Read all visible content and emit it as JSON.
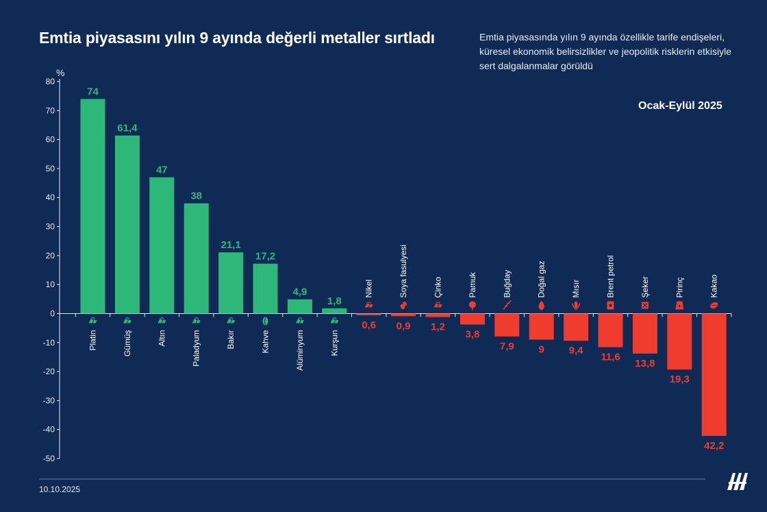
{
  "header": {
    "title": "Emtia piyasasını yılın 9 ayında değerli metaller sırtladı",
    "subtitle": "Emtia piyasasında yılın 9 ayında özellikle tarife endişeleri, küresel ekonomik belirsizlikler ve jeopolitik risklerin etkisiyle sert dalgalanmalar görüldü",
    "period": "Ocak-Eylül 2025"
  },
  "footer": {
    "date": "10.10.2025",
    "logo_text": "AA"
  },
  "colors": {
    "background": "#0f2a55",
    "positive": "#2db87a",
    "negative": "#f03c2e",
    "axis": "#e8edf5"
  },
  "chart_data": {
    "type": "bar",
    "ylabel": "%",
    "ylim": [
      -50,
      80
    ],
    "yticks": [
      80,
      70,
      60,
      50,
      40,
      30,
      20,
      10,
      0,
      -10,
      -20,
      -30,
      -40,
      -50
    ],
    "grid": false,
    "categories": [
      "Platin",
      "Gümüş",
      "Altın",
      "Paladyum",
      "Bakır",
      "Kahve",
      "Alüminyum",
      "Kurşun",
      "Nikel",
      "Soya fasulyesi",
      "Çinko",
      "Pamuk",
      "Buğday",
      "Doğal gaz",
      "Mısır",
      "Brent petrol",
      "Şeker",
      "Pirinç",
      "Kakao"
    ],
    "values": [
      74,
      61.4,
      47,
      38,
      21.1,
      17.2,
      4.9,
      1.8,
      -0.6,
      -0.9,
      -1.2,
      -3.8,
      -7.9,
      -9,
      -9.4,
      -11.6,
      -13.8,
      -19.3,
      -42.2
    ],
    "value_labels": [
      "74",
      "61,4",
      "47",
      "38",
      "21,1",
      "17,2",
      "4,9",
      "1,8",
      "0,6",
      "0,9",
      "1,2",
      "3,8",
      "7,9",
      "9",
      "9,4",
      "11,6",
      "13,8",
      "19,3",
      "42,2"
    ],
    "icons": [
      "ore-icon",
      "ore-icon",
      "ore-icon",
      "ore-icon",
      "ore-icon",
      "coffee-bean-icon",
      "ore-icon",
      "ore-icon",
      "ore-icon",
      "soybean-icon",
      "ore-icon",
      "cotton-icon",
      "wheat-icon",
      "flame-icon",
      "corn-icon",
      "oil-barrel-icon",
      "sugar-icon",
      "rice-bag-icon",
      "cocoa-icon"
    ]
  }
}
